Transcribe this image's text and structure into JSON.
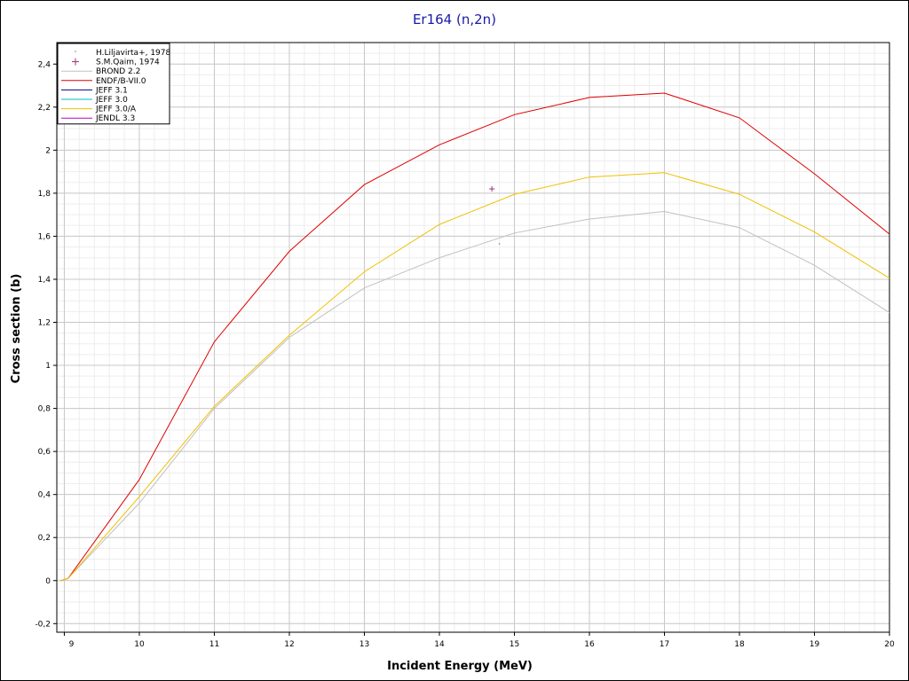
{
  "chart_data": {
    "type": "line",
    "title": "Er164 (n,2n)",
    "xlabel": "Incident Energy (MeV)",
    "ylabel": "Cross section (b)",
    "xlim": [
      8.9,
      20
    ],
    "ylim": [
      -0.24,
      2.5
    ],
    "x_ticks": [
      9,
      10,
      11,
      12,
      13,
      14,
      15,
      16,
      17,
      18,
      19,
      20
    ],
    "x_tick_labels": [
      "9",
      "10",
      "11",
      "12",
      "13",
      "14",
      "15",
      "16",
      "17",
      "18",
      "19",
      "20"
    ],
    "y_ticks": [
      -0.2,
      0,
      0.2,
      0.4,
      0.6,
      0.8,
      1,
      1.2,
      1.4,
      1.6,
      1.8,
      2,
      2.2,
      2.4
    ],
    "y_tick_labels": [
      "-0,2",
      "0",
      "0,2",
      "0,4",
      "0,6",
      "0,8",
      "1",
      "1,2",
      "1,4",
      "1,6",
      "1,8",
      "2",
      "2,2",
      "2,4"
    ],
    "grid": true,
    "legend_position": "top-left",
    "series": [
      {
        "name": "H.Liljavirta+, 1978",
        "kind": "points",
        "marker": "dot",
        "color": "#808080",
        "points": [
          [
            14.8,
            1.565
          ]
        ]
      },
      {
        "name": "S.M.Qaim, 1974",
        "kind": "points",
        "marker": "plus",
        "color": "#a0307a",
        "points": [
          [
            14.7,
            1.82
          ]
        ]
      },
      {
        "name": "BROND 2.2",
        "kind": "line",
        "color": "#c0c0c0",
        "points": [
          [
            8.95,
            0
          ],
          [
            9.05,
            0.01
          ],
          [
            10,
            0.36
          ],
          [
            11,
            0.8
          ],
          [
            12,
            1.13
          ],
          [
            13,
            1.36
          ],
          [
            14,
            1.5
          ],
          [
            15,
            1.615
          ],
          [
            16,
            1.68
          ],
          [
            17,
            1.715
          ],
          [
            18,
            1.64
          ],
          [
            19,
            1.465
          ],
          [
            20,
            1.245
          ]
        ]
      },
      {
        "name": "ENDF/B-VII.0",
        "kind": "line",
        "color": "#e00000",
        "points": [
          [
            8.95,
            0
          ],
          [
            9.05,
            0.01
          ],
          [
            10,
            0.47
          ],
          [
            11,
            1.11
          ],
          [
            12,
            1.53
          ],
          [
            13,
            1.84
          ],
          [
            14,
            2.025
          ],
          [
            15,
            2.165
          ],
          [
            16,
            2.245
          ],
          [
            17,
            2.265
          ],
          [
            18,
            2.15
          ],
          [
            19,
            1.89
          ],
          [
            20,
            1.61
          ]
        ]
      },
      {
        "name": "JEFF 3.1",
        "kind": "line",
        "color": "#000080",
        "points": []
      },
      {
        "name": "JEFF 3.0",
        "kind": "line",
        "color": "#00c0c0",
        "points": []
      },
      {
        "name": "JEFF 3.0/A",
        "kind": "line",
        "color": "#f0c000",
        "points": [
          [
            8.95,
            0
          ],
          [
            9.05,
            0.01
          ],
          [
            10,
            0.39
          ],
          [
            11,
            0.81
          ],
          [
            12,
            1.14
          ],
          [
            13,
            1.435
          ],
          [
            14,
            1.655
          ],
          [
            15,
            1.795
          ],
          [
            16,
            1.875
          ],
          [
            17,
            1.895
          ],
          [
            18,
            1.795
          ],
          [
            19,
            1.62
          ],
          [
            20,
            1.405
          ]
        ]
      },
      {
        "name": "JENDL 3.3",
        "kind": "line",
        "color": "#c000c0",
        "points": []
      }
    ]
  }
}
